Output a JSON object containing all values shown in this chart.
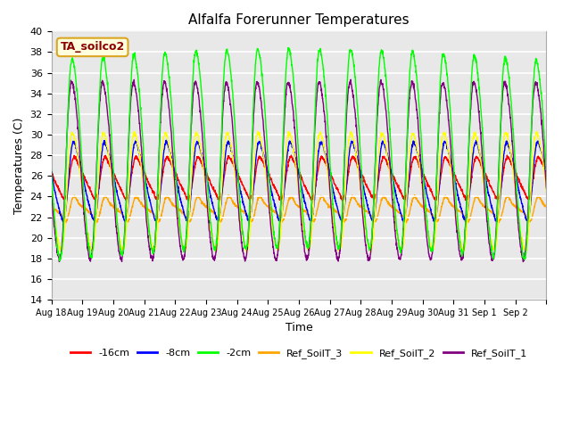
{
  "title": "Alfalfa Forerunner Temperatures",
  "xlabel": "Time",
  "ylabel": "Temperatures (C)",
  "ylim": [
    14,
    40
  ],
  "xlim": [
    0,
    16
  ],
  "xtick_labels": [
    "Aug 18",
    "Aug 19",
    "Aug 20",
    "Aug 21",
    "Aug 22",
    "Aug 23",
    "Aug 24",
    "Aug 25",
    "Aug 26",
    "Aug 27",
    "Aug 28",
    "Aug 29",
    "Aug 30",
    "Aug 31",
    "Sep 1",
    "Sep 2"
  ],
  "ytick_vals": [
    14,
    16,
    18,
    20,
    22,
    24,
    26,
    28,
    30,
    32,
    34,
    36,
    38,
    40
  ],
  "legend_labels": [
    "-16cm",
    "-8cm",
    "-2cm",
    "Ref_SoilT_3",
    "Ref_SoilT_2",
    "Ref_SoilT_1"
  ],
  "legend_colors": [
    "red",
    "blue",
    "lime",
    "orange",
    "yellow",
    "purple"
  ],
  "annotation_text": "TA_soilco2",
  "annotation_color": "darkred",
  "annotation_bg": "#ffffdd",
  "background_color": "#e8e8e8",
  "n_days": 16,
  "series": {
    "red": {
      "base": 25.8,
      "amp": 1.8,
      "phase_shift": 0.58,
      "skew": 0.3,
      "noise": 0.08
    },
    "blue": {
      "base": 25.5,
      "amp": 3.5,
      "phase_shift": 0.55,
      "skew": 0.25,
      "noise": 0.08
    },
    "green": {
      "base": 27.5,
      "amp": 9.5,
      "phase_shift": 0.48,
      "skew": 0.15,
      "noise": 0.12
    },
    "orange": {
      "base": 22.8,
      "amp": 0.9,
      "phase_shift": 0.6,
      "skew": 0.5,
      "noise": 0.06
    },
    "yellow": {
      "base": 24.5,
      "amp": 5.5,
      "phase_shift": 0.5,
      "skew": 0.18,
      "noise": 0.1
    },
    "purple": {
      "base": 26.5,
      "amp": 8.5,
      "phase_shift": 0.46,
      "skew": 0.14,
      "noise": 0.12
    }
  }
}
